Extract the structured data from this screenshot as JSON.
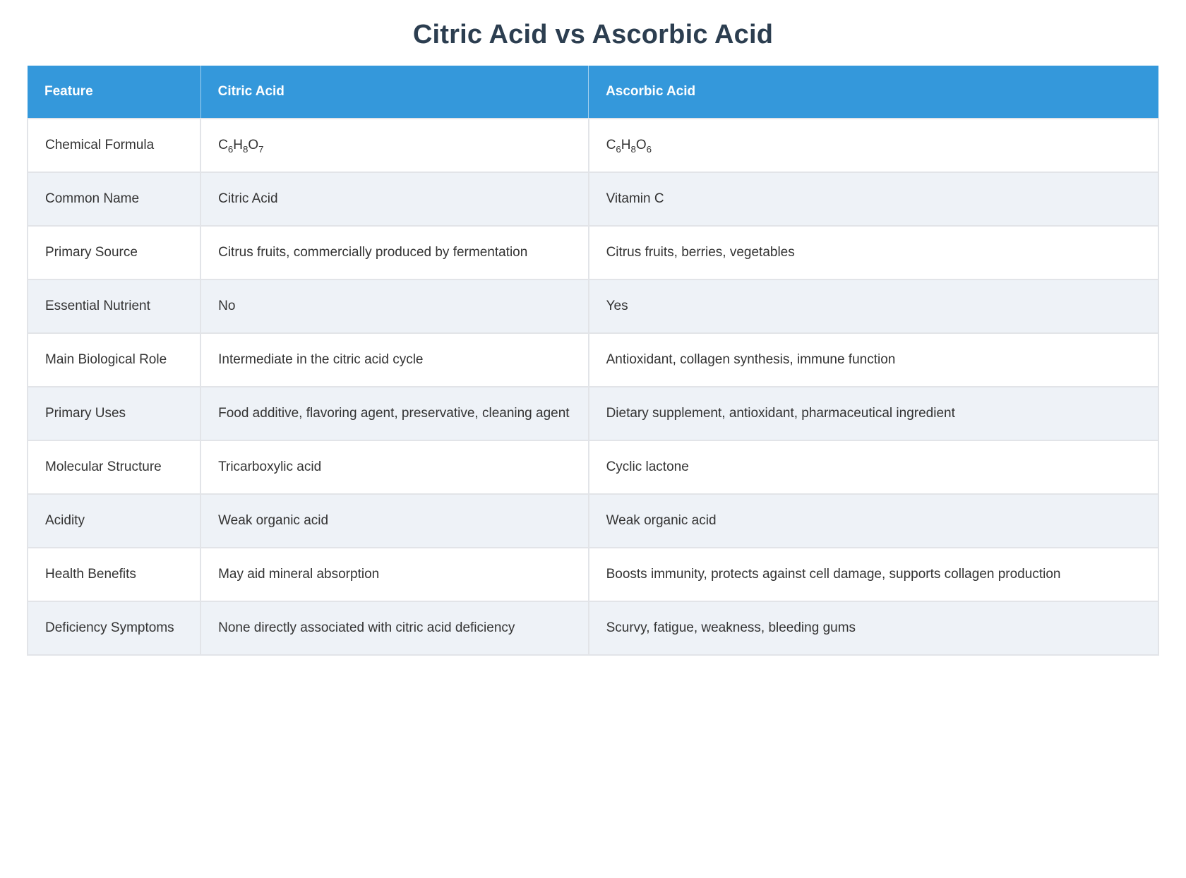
{
  "page": {
    "title": "Citric Acid vs Ascorbic Acid"
  },
  "table": {
    "columns": [
      "Feature",
      "Citric Acid",
      "Ascorbic Acid"
    ],
    "rows": [
      {
        "feature": "Chemical Formula",
        "citric": "C6H8O7",
        "ascorbic": "C6H8O6",
        "formula": true
      },
      {
        "feature": "Common Name",
        "citric": "Citric Acid",
        "ascorbic": "Vitamin C"
      },
      {
        "feature": "Primary Source",
        "citric": "Citrus fruits, commercially produced by fermentation",
        "ascorbic": "Citrus fruits, berries, vegetables"
      },
      {
        "feature": "Essential Nutrient",
        "citric": "No",
        "ascorbic": "Yes"
      },
      {
        "feature": "Main Biological Role",
        "citric": "Intermediate in the citric acid cycle",
        "ascorbic": "Antioxidant, collagen synthesis, immune function"
      },
      {
        "feature": "Primary Uses",
        "citric": "Food additive, flavoring agent, preservative, cleaning agent",
        "ascorbic": "Dietary supplement, antioxidant, pharmaceutical ingredient"
      },
      {
        "feature": "Molecular Structure",
        "citric": "Tricarboxylic acid",
        "ascorbic": "Cyclic lactone"
      },
      {
        "feature": "Acidity",
        "citric": "Weak organic acid",
        "ascorbic": "Weak organic acid"
      },
      {
        "feature": "Health Benefits",
        "citric": "May aid mineral absorption",
        "ascorbic": "Boosts immunity, protects against cell damage, supports collagen production"
      },
      {
        "feature": "Deficiency Symptoms",
        "citric": "None directly associated with citric acid deficiency",
        "ascorbic": "Scurvy, fatigue, weakness, bleeding gums"
      }
    ],
    "colors": {
      "header_bg": "#3498db",
      "header_text": "#ffffff",
      "row_alt_bg": "#eef2f7",
      "border": "#e2e4e8",
      "title_color": "#2c3e50",
      "body_text": "#333333"
    }
  }
}
